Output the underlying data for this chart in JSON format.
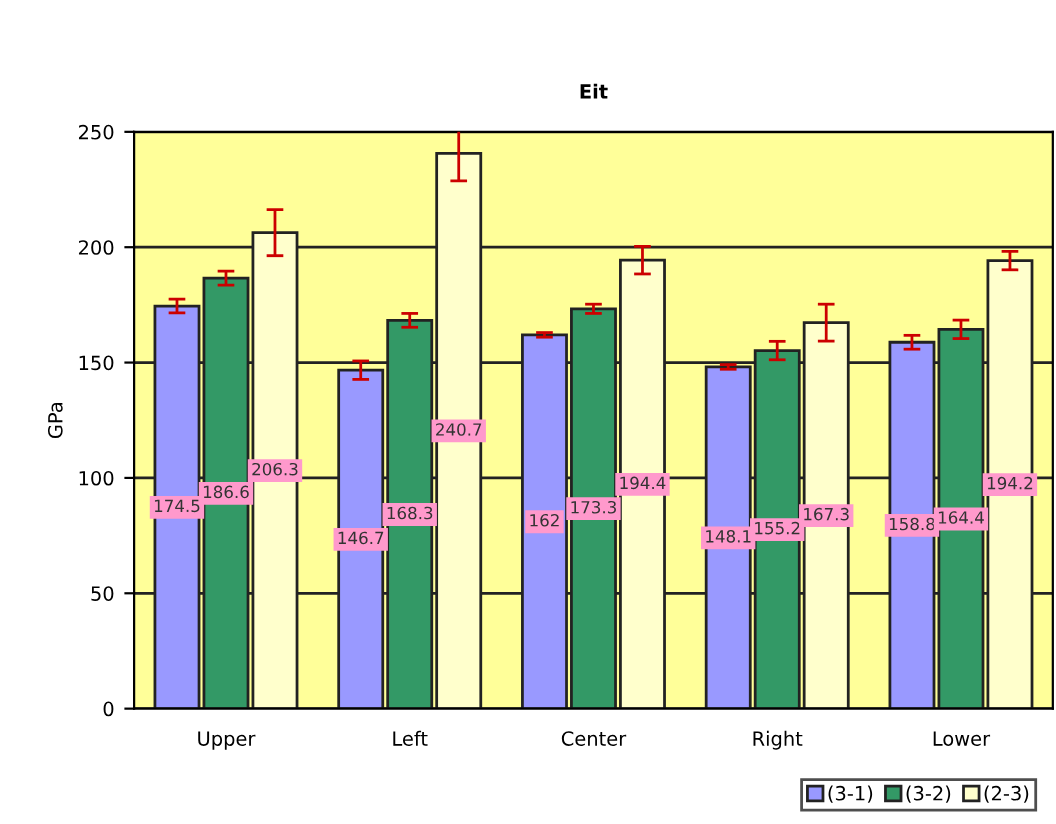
{
  "chart_data": {
    "type": "bar",
    "title": "Eit",
    "ylabel": "GPa",
    "categories": [
      "Upper",
      "Left",
      "Center",
      "Right",
      "Lower"
    ],
    "series": [
      {
        "name": "(3-1)",
        "color": "#9999ff",
        "values": [
          174.5,
          146.7,
          162,
          148.1,
          158.8
        ],
        "errors": [
          3,
          4,
          1,
          1,
          3
        ]
      },
      {
        "name": "(3-2)",
        "color": "#339966",
        "values": [
          186.6,
          168.3,
          173.3,
          155.2,
          164.4
        ],
        "errors": [
          3,
          3,
          2,
          4,
          4
        ]
      },
      {
        "name": "(2-3)",
        "color": "#ffffcc",
        "values": [
          206.3,
          240.7,
          194.4,
          167.3,
          194.2
        ],
        "errors": [
          10,
          12,
          6,
          8,
          4
        ]
      }
    ],
    "data_labels": true,
    "ylim": [
      0,
      250
    ],
    "yticks": [
      0,
      50,
      100,
      150,
      200,
      250
    ],
    "grid": "y",
    "legend": "bottom right"
  }
}
